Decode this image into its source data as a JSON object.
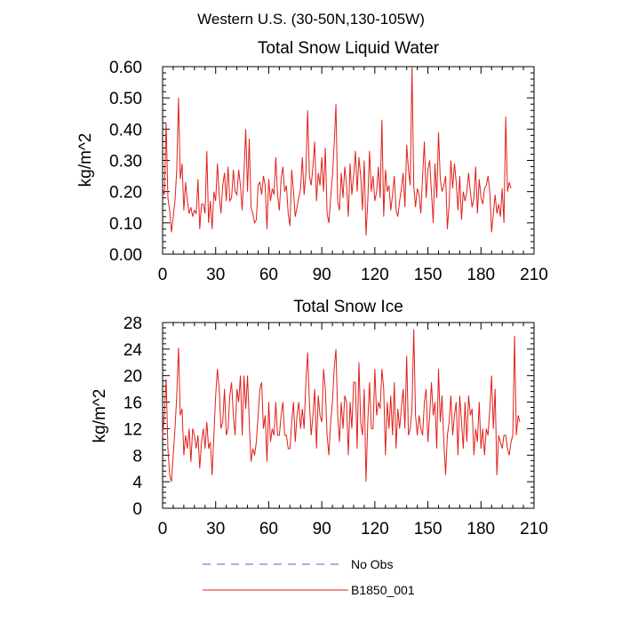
{
  "figure": {
    "suptitle": "Western U.S. (30-50N,130-105W)"
  },
  "legend": {
    "entries": [
      {
        "label": "No Obs",
        "color": "#5a5ad6",
        "style": "dashed"
      },
      {
        "label": "B1850_001",
        "color": "#e0201b",
        "style": "solid"
      }
    ]
  },
  "chart_data": [
    {
      "type": "line",
      "title": "Total Snow Liquid Water",
      "xlabel": "",
      "ylabel": "kg/m^2",
      "xlim": [
        0,
        210
      ],
      "ylim": [
        0,
        0.6
      ],
      "xticks": [
        "0",
        "30",
        "60",
        "90",
        "120",
        "150",
        "180",
        "210"
      ],
      "yticks": [
        "0.00",
        "0.10",
        "0.20",
        "0.30",
        "0.40",
        "0.50",
        "0.60"
      ],
      "series": [
        {
          "name": "B1850_001",
          "color": "#e0201b",
          "x_start": 0,
          "values": [
            0.21,
            0.19,
            0.42,
            0.18,
            0.14,
            0.07,
            0.12,
            0.17,
            0.27,
            0.5,
            0.24,
            0.29,
            0.14,
            0.23,
            0.17,
            0.13,
            0.15,
            0.12,
            0.14,
            0.13,
            0.24,
            0.08,
            0.16,
            0.16,
            0.13,
            0.33,
            0.1,
            0.17,
            0.08,
            0.2,
            0.17,
            0.29,
            0.19,
            0.13,
            0.22,
            0.26,
            0.17,
            0.28,
            0.17,
            0.18,
            0.27,
            0.2,
            0.19,
            0.27,
            0.22,
            0.14,
            0.26,
            0.4,
            0.2,
            0.37,
            0.15,
            0.13,
            0.1,
            0.11,
            0.22,
            0.23,
            0.19,
            0.25,
            0.22,
            0.08,
            0.24,
            0.17,
            0.21,
            0.19,
            0.31,
            0.19,
            0.14,
            0.24,
            0.28,
            0.2,
            0.22,
            0.13,
            0.09,
            0.27,
            0.2,
            0.12,
            0.15,
            0.18,
            0.21,
            0.31,
            0.19,
            0.26,
            0.46,
            0.25,
            0.22,
            0.28,
            0.36,
            0.17,
            0.26,
            0.22,
            0.31,
            0.2,
            0.34,
            0.13,
            0.1,
            0.18,
            0.25,
            0.35,
            0.48,
            0.17,
            0.14,
            0.26,
            0.18,
            0.28,
            0.22,
            0.12,
            0.29,
            0.19,
            0.25,
            0.33,
            0.2,
            0.31,
            0.25,
            0.14,
            0.3,
            0.06,
            0.17,
            0.33,
            0.2,
            0.25,
            0.17,
            0.2,
            0.28,
            0.18,
            0.43,
            0.12,
            0.27,
            0.2,
            0.22,
            0.14,
            0.19,
            0.25,
            0.14,
            0.12,
            0.17,
            0.21,
            0.26,
            0.15,
            0.35,
            0.27,
            0.22,
            0.6,
            0.22,
            0.15,
            0.21,
            0.19,
            0.13,
            0.25,
            0.36,
            0.18,
            0.27,
            0.3,
            0.2,
            0.1,
            0.29,
            0.18,
            0.39,
            0.24,
            0.2,
            0.22,
            0.25,
            0.08,
            0.16,
            0.3,
            0.21,
            0.29,
            0.23,
            0.14,
            0.25,
            0.11,
            0.2,
            0.17,
            0.2,
            0.26,
            0.2,
            0.15,
            0.18,
            0.28,
            0.13,
            0.24,
            0.18,
            0.16,
            0.21,
            0.22,
            0.25,
            0.2,
            0.07,
            0.13,
            0.19,
            0.13,
            0.16,
            0.12,
            0.21,
            0.1,
            0.44,
            0.2,
            0.23,
            0.21
          ]
        }
      ]
    },
    {
      "type": "line",
      "title": "Total Snow Ice",
      "xlabel": "",
      "ylabel": "kg/m^2",
      "xlim": [
        0,
        210
      ],
      "ylim": [
        0,
        28
      ],
      "xticks": [
        "0",
        "30",
        "60",
        "90",
        "120",
        "150",
        "180",
        "210"
      ],
      "yticks": [
        "0",
        "4",
        "8",
        "12",
        "16",
        "20",
        "24",
        "28"
      ],
      "series": [
        {
          "name": "B1850_001",
          "color": "#e0201b",
          "x_start": 0,
          "values": [
            11,
            14,
            19.5,
            9,
            5,
            4,
            8,
            12,
            17,
            24.2,
            14,
            15,
            8,
            11,
            9,
            12,
            7,
            12,
            11,
            9,
            11,
            6,
            10,
            12,
            9,
            13,
            9,
            10,
            5,
            11,
            17,
            21,
            18,
            12,
            13,
            18,
            11,
            12,
            17,
            19,
            14,
            11,
            18,
            16,
            20,
            11,
            20,
            15,
            20,
            13,
            7,
            9,
            8,
            10,
            14,
            18,
            19,
            12,
            14,
            7,
            16,
            10,
            12,
            11,
            16,
            11,
            11,
            14,
            16,
            11,
            11,
            9,
            9,
            13,
            16,
            10,
            14,
            16,
            12,
            15,
            12,
            19,
            23.5,
            16,
            11,
            14,
            18,
            9,
            17,
            14,
            13,
            21,
            18,
            11,
            8,
            13,
            16,
            21,
            24,
            14,
            10,
            16,
            12,
            17,
            16,
            8,
            16,
            12,
            19,
            19,
            9,
            22,
            13,
            11,
            18,
            4,
            13,
            19,
            12,
            12,
            21,
            14,
            16,
            15,
            21,
            18,
            8,
            16,
            12,
            17,
            11,
            19,
            9,
            15,
            12,
            15,
            18,
            12,
            23,
            11,
            12,
            15,
            27,
            14,
            11,
            14,
            12,
            11,
            16,
            18,
            10,
            14,
            19,
            14,
            16,
            9,
            21,
            13,
            17,
            10,
            5,
            11,
            13,
            17,
            11,
            14,
            16,
            8,
            17,
            13,
            9,
            16,
            10,
            17,
            14,
            15,
            8,
            12,
            10,
            16,
            9,
            12,
            8,
            12,
            11,
            15,
            20,
            12,
            18,
            5,
            11,
            10,
            9,
            11,
            11,
            9,
            8,
            10,
            11,
            26,
            11,
            14,
            13
          ]
        }
      ]
    }
  ]
}
